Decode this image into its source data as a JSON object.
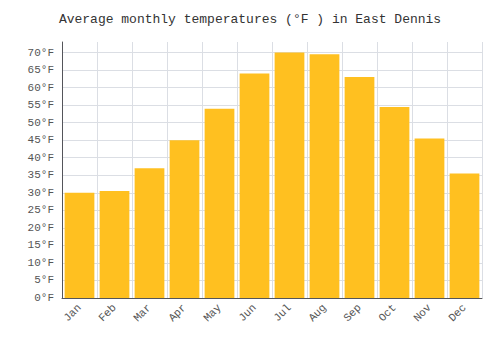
{
  "chart_data": {
    "type": "bar",
    "title": "Average monthly temperatures (°F ) in East Dennis",
    "categories": [
      "Jan",
      "Feb",
      "Mar",
      "Apr",
      "May",
      "Jun",
      "Jul",
      "Aug",
      "Sep",
      "Oct",
      "Nov",
      "Dec"
    ],
    "values": [
      30,
      30.5,
      37,
      45,
      54,
      64,
      70,
      69.5,
      63,
      54.5,
      45.5,
      35.5
    ],
    "color": "#FFC020",
    "ylim": [
      0,
      73
    ],
    "yticks": [
      {
        "value": 0,
        "label": "0°F"
      },
      {
        "value": 5,
        "label": "5°F"
      },
      {
        "value": 10,
        "label": "10°F"
      },
      {
        "value": 15,
        "label": "15°F"
      },
      {
        "value": 20,
        "label": "20°F"
      },
      {
        "value": 25,
        "label": "25°F"
      },
      {
        "value": 30,
        "label": "30°F"
      },
      {
        "value": 35,
        "label": "35°F"
      },
      {
        "value": 40,
        "label": "40°F"
      },
      {
        "value": 45,
        "label": "45°F"
      },
      {
        "value": 50,
        "label": "50°F"
      },
      {
        "value": 55,
        "label": "55°F"
      },
      {
        "value": 60,
        "label": "60°F"
      },
      {
        "value": 65,
        "label": "65°F"
      },
      {
        "value": 70,
        "label": "70°F"
      }
    ],
    "grid": true
  }
}
